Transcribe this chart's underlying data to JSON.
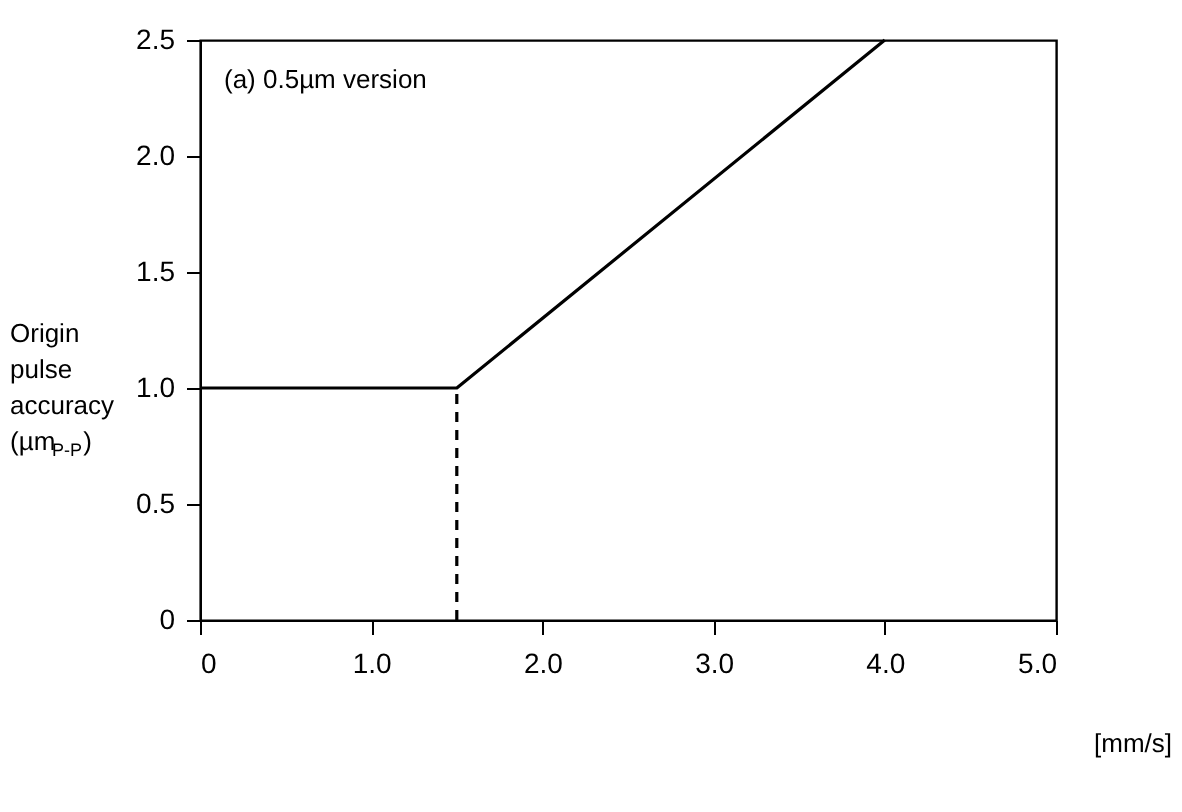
{
  "chart_data": {
    "type": "line",
    "xlabel": "[mm/s]",
    "ylabel": "Origin pulse accuracy (µm$_{P-P}$)",
    "annotations": [
      "(a) 0.5µm version"
    ],
    "series": [
      {
        "x": [
          0,
          1.5,
          4.0
        ],
        "values": [
          1.0,
          1.0,
          2.5
        ],
        "color": "#000000",
        "line_style": "solid"
      },
      {
        "x": [
          1.5,
          1.5
        ],
        "values": [
          0,
          1.0
        ],
        "color": "#000000",
        "line_style": "dashed"
      }
    ],
    "xlim": [
      0,
      5
    ],
    "ylim": [
      0,
      2.5
    ],
    "xticks": [
      0,
      {
        "value": 1,
        "label": "1.0"
      },
      {
        "value": 2,
        "label": "2.0"
      },
      {
        "value": 3,
        "label": "3.0"
      },
      {
        "value": 4,
        "label": "4.0"
      },
      {
        "value": 5,
        "label": "5.0"
      }
    ],
    "yticks": [
      0,
      {
        "value": 0.5,
        "label": "0.5"
      },
      {
        "value": 1,
        "label": "1.0"
      },
      {
        "value": 1.5,
        "label": "1.5"
      },
      {
        "value": 2,
        "label": "2.0"
      },
      {
        "value": 2.5,
        "label": "2.5"
      }
    ],
    "marker": "none"
  }
}
